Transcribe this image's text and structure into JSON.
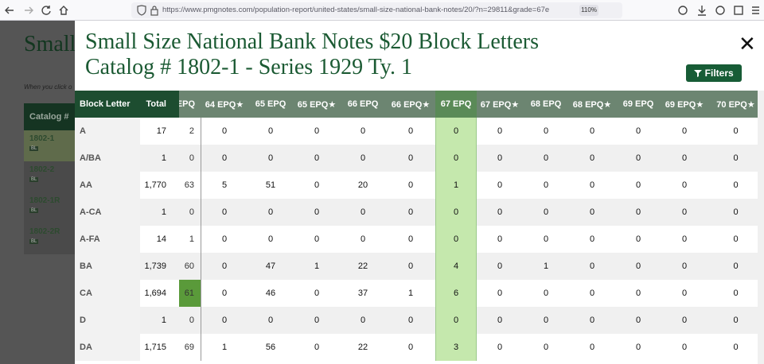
{
  "browser": {
    "url": "https://www.pmgnotes.com/population-report/united-states/small-size-national-bank-notes/20/?n=29811&grade=67e",
    "zoom": "110%"
  },
  "background_page": {
    "title": "Small",
    "note": "When you click o",
    "table": {
      "header": "Catalog #",
      "rows": [
        {
          "catalog": "1802-1",
          "badge": "BL"
        },
        {
          "catalog": "1802-2",
          "badge": "BL"
        },
        {
          "catalog": "1802-1R",
          "badge": "BL"
        },
        {
          "catalog": "1802-2R",
          "badge": "BL"
        }
      ]
    }
  },
  "modal": {
    "title": "Small Size National Bank Notes $20 Block Letters",
    "subtitle": "Catalog # 1802-1 - Series 1929 Ty. 1",
    "filter_button": "Filters",
    "table": {
      "headers": [
        "Block Letter",
        "Total",
        "EPQ",
        "64 EPQ★",
        "65 EPQ",
        "65 EPQ★",
        "66 EPQ",
        "66 EPQ★",
        "67 EPQ",
        "67 EPQ★",
        "68 EPQ",
        "68 EPQ★",
        "69 EPQ",
        "69 EPQ★",
        "70 EPQ★"
      ],
      "rows": [
        [
          "A",
          "17",
          "2",
          "0",
          "0",
          "0",
          "0",
          "0",
          "0",
          "0",
          "0",
          "0",
          "0",
          "0",
          "0"
        ],
        [
          "A/BA",
          "1",
          "0",
          "0",
          "0",
          "0",
          "0",
          "0",
          "0",
          "0",
          "0",
          "0",
          "0",
          "0",
          "0"
        ],
        [
          "AA",
          "1,770",
          "63",
          "5",
          "51",
          "0",
          "20",
          "0",
          "1",
          "0",
          "0",
          "0",
          "0",
          "0",
          "0"
        ],
        [
          "A-CA",
          "1",
          "0",
          "0",
          "0",
          "0",
          "0",
          "0",
          "0",
          "0",
          "0",
          "0",
          "0",
          "0",
          "0"
        ],
        [
          "A-FA",
          "14",
          "1",
          "0",
          "0",
          "0",
          "0",
          "0",
          "0",
          "0",
          "0",
          "0",
          "0",
          "0",
          "0"
        ],
        [
          "BA",
          "1,739",
          "60",
          "0",
          "47",
          "1",
          "22",
          "0",
          "4",
          "0",
          "1",
          "0",
          "0",
          "0",
          "0"
        ],
        [
          "CA",
          "1,694",
          "61",
          "0",
          "46",
          "0",
          "37",
          "1",
          "6",
          "0",
          "0",
          "0",
          "0",
          "0",
          "0"
        ],
        [
          "D",
          "1",
          "0",
          "0",
          "0",
          "0",
          "0",
          "0",
          "0",
          "0",
          "0",
          "0",
          "0",
          "0",
          "0"
        ],
        [
          "DA",
          "1,715",
          "69",
          "1",
          "56",
          "0",
          "22",
          "0",
          "3",
          "0",
          "0",
          "0",
          "0",
          "0",
          "0"
        ]
      ]
    }
  }
}
